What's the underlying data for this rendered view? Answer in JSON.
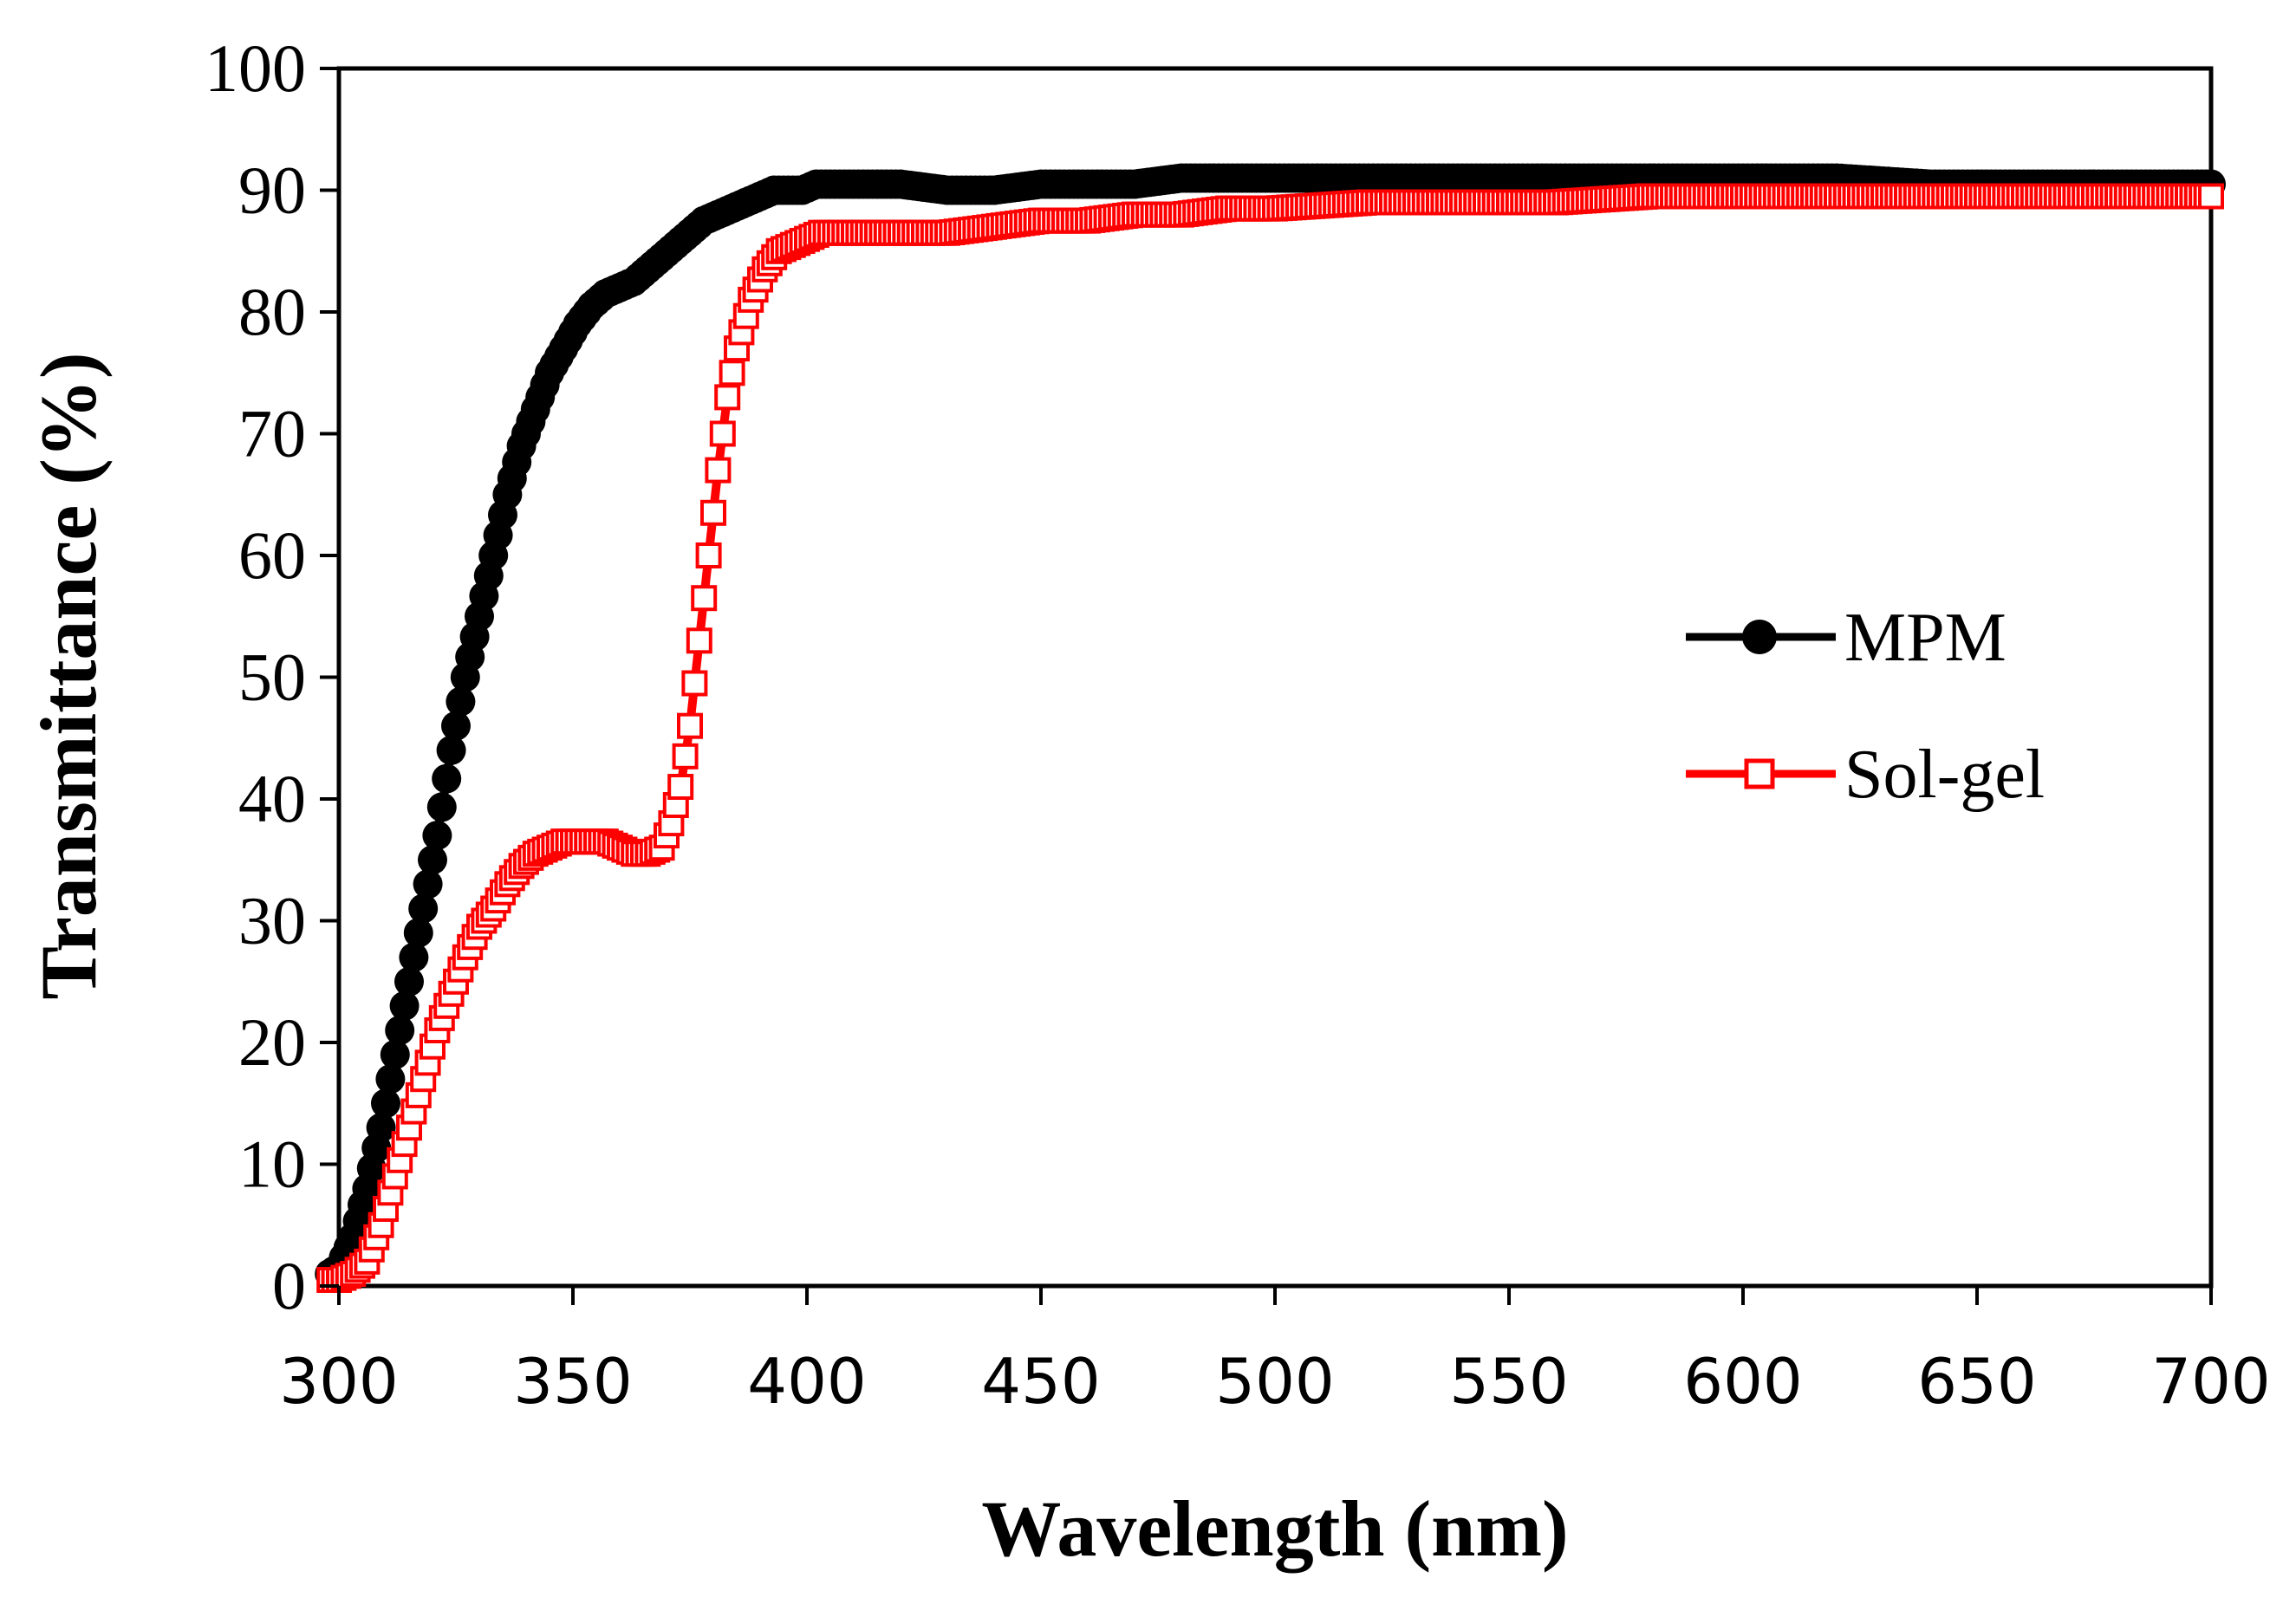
{
  "chart_data": {
    "type": "line",
    "xlabel": "Wavelength (nm)",
    "ylabel": "Transmittance (%)",
    "xlim": [
      300,
      700
    ],
    "ylim": [
      0,
      100
    ],
    "x_ticks": [
      "300",
      "350",
      "400",
      "450",
      "500",
      "550",
      "600",
      "650",
      "700"
    ],
    "y_ticks": [
      "0",
      "10",
      "20",
      "30",
      "40",
      "50",
      "60",
      "70",
      "80",
      "90",
      "100"
    ],
    "grid": false,
    "legend_position": "right",
    "series": [
      {
        "name": "MPM",
        "color": "#000000",
        "marker": "filled-circle",
        "x": [
          298,
          300,
          303,
          306,
          309,
          312,
          315,
          318,
          321,
          324,
          327,
          330,
          333,
          336,
          339,
          342,
          345,
          348,
          351,
          354,
          357,
          360,
          363,
          366,
          369,
          372,
          375,
          378,
          381,
          384,
          387,
          390,
          393,
          396,
          399,
          402,
          410,
          420,
          430,
          440,
          450,
          460,
          470,
          480,
          490,
          500,
          520,
          540,
          560,
          580,
          600,
          620,
          640,
          660,
          680,
          700
        ],
        "y": [
          1,
          1.5,
          4,
          8,
          13,
          19,
          25,
          31,
          37,
          44,
          50,
          55,
          60,
          65,
          69,
          72,
          75,
          77,
          79,
          80.5,
          81.5,
          82,
          82.5,
          83.5,
          84.5,
          85.5,
          86.5,
          87.5,
          88,
          88.5,
          89,
          89.5,
          90,
          90,
          90,
          90.5,
          90.5,
          90.5,
          90,
          90,
          90.5,
          90.5,
          90.5,
          91,
          91,
          91,
          91,
          91,
          91,
          91,
          91,
          91,
          90.5,
          90.5,
          90.5,
          90.5
        ]
      },
      {
        "name": "Sol-gel",
        "color": "#ff0000",
        "marker": "open-square",
        "x": [
          298,
          300,
          303,
          306,
          309,
          312,
          315,
          318,
          321,
          324,
          327,
          330,
          333,
          336,
          339,
          342,
          345,
          348,
          351,
          354,
          357,
          360,
          363,
          366,
          369,
          371,
          373,
          375,
          377,
          379,
          381,
          383,
          385,
          388,
          391,
          394,
          397,
          400,
          403,
          410,
          420,
          430,
          440,
          450,
          460,
          470,
          480,
          490,
          500,
          520,
          540,
          560,
          580,
          600,
          620,
          640,
          660,
          680,
          700
        ],
        "y": [
          0.5,
          0.5,
          1,
          2,
          5,
          9,
          13,
          17,
          21,
          24,
          27,
          29.5,
          31,
          33,
          34.5,
          35.5,
          36,
          36.5,
          36.5,
          36.5,
          36.5,
          36,
          35.5,
          35.5,
          36,
          38,
          41,
          46,
          53,
          60,
          67,
          73,
          77,
          81,
          83.5,
          85,
          85.5,
          86,
          86.5,
          86.5,
          86.5,
          86.5,
          87,
          87.5,
          87.5,
          88,
          88,
          88.5,
          88.5,
          89,
          89,
          89,
          89.5,
          89.5,
          89.5,
          89.5,
          89.5,
          89.5,
          89.5
        ]
      }
    ]
  }
}
